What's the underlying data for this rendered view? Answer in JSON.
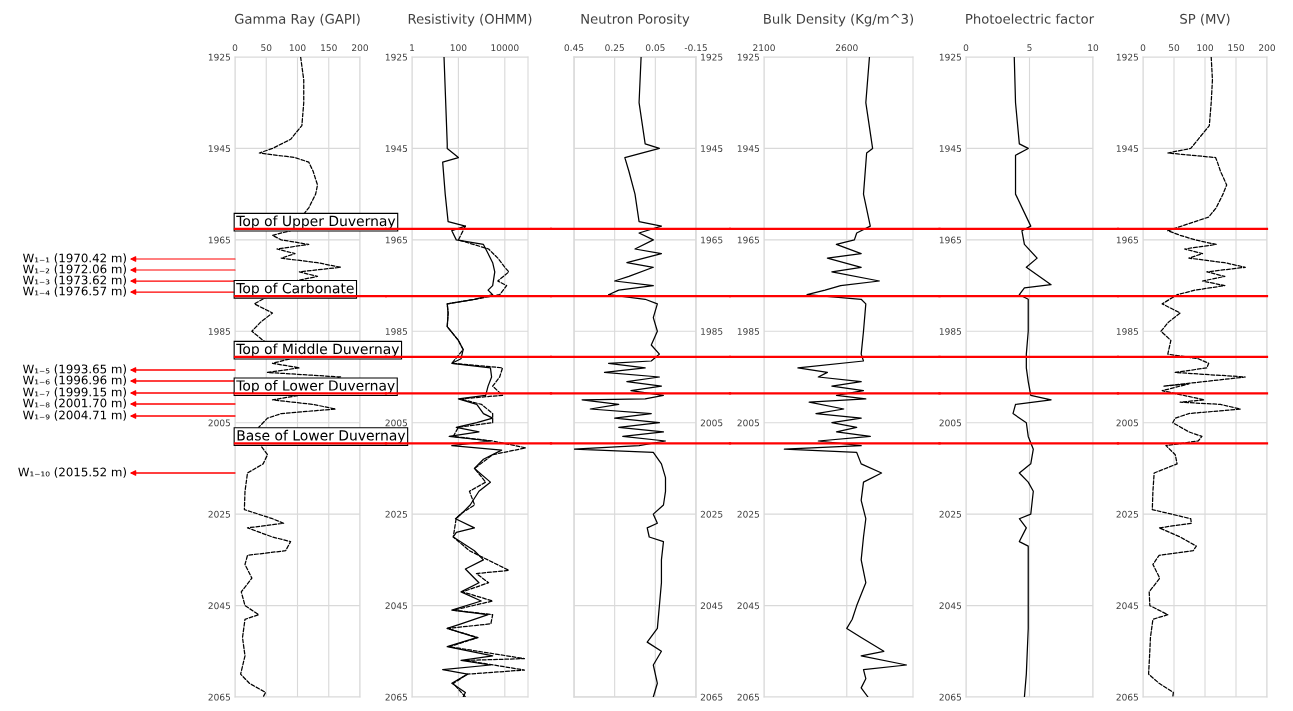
{
  "chart_data": [
    {
      "type": "line",
      "title": "Gamma Ray (GAPI)",
      "xlim": [
        0,
        200
      ],
      "xticks": [
        0,
        50,
        100,
        150,
        200
      ],
      "ylim": [
        2065,
        1925
      ],
      "yticks": [
        1925,
        1945,
        1965,
        1985,
        2005,
        2025,
        2045,
        2065
      ],
      "grid": true,
      "series": [
        {
          "color": "#000000",
          "line_style": "dashed",
          "x": [
            105,
            110,
            110,
            107,
            89,
            60,
            39,
            96,
            118,
            125,
            132,
            129,
            118,
            89,
            60,
            74,
            118,
            67,
            96,
            74,
            132,
            169,
            103,
            132,
            96,
            31,
            60,
            41,
            27,
            45,
            89,
            60,
            103,
            52,
            169,
            103,
            60,
            125,
            161,
            74,
            52,
            38,
            41,
            52,
            45,
            20,
            16,
            15,
            60,
            78,
            20,
            60,
            89,
            81,
            20,
            16,
            27,
            10,
            16,
            38,
            16,
            12,
            16,
            9,
            23,
            49,
            45
          ],
          "values": [
            1925,
            1930,
            1935,
            1940,
            1943,
            1945,
            1946,
            1947,
            1948,
            1950,
            1953,
            1955,
            1958,
            1963,
            1964,
            1965,
            1966,
            1967,
            1968,
            1969,
            1970,
            1971,
            1972,
            1973,
            1974,
            1979,
            1981,
            1983,
            1985,
            1987,
            1991,
            1992,
            1993,
            1994,
            1995,
            1999,
            2000,
            2001,
            2002,
            2003,
            2004,
            2006,
            2010,
            2012,
            2014,
            2016,
            2020,
            2024,
            2026,
            2027,
            2028,
            2030,
            2031,
            2033,
            2034,
            2036,
            2039,
            2042,
            2045,
            2047,
            2048,
            2052,
            2056,
            2060,
            2062,
            2064,
            2065
          ]
        }
      ],
      "ref_lines": [
        {
          "axis": "y",
          "value": 1962.6,
          "label": "Top of Upper Duvernay",
          "color": "#ff0000"
        },
        {
          "axis": "y",
          "value": 1977.3,
          "label": "Top of Carbonate",
          "color": "#ff0000"
        },
        {
          "axis": "y",
          "value": 1990.6,
          "label": "Top of Middle Duvernay",
          "color": "#ff0000"
        },
        {
          "axis": "y",
          "value": 1998.6,
          "label": "Top of Lower Duvernay",
          "color": "#ff0000"
        },
        {
          "axis": "y",
          "value": 2009.5,
          "label": "Base of Lower Duvernay",
          "color": "#ff0000"
        }
      ],
      "annotations": [
        "W₁₋₁ (1970.42 m)",
        "W₁₋₂ (1972.06 m)",
        "W₁₋₃ (1973.62 m)",
        "W₁₋₄ (1976.57 m)",
        "W₁₋₅ (1993.65 m)",
        "W₁₋₆ (1996.96 m)",
        "W₁₋₇ (1999.15 m)",
        "W₁₋₈ (2001.70 m)",
        "W₁₋₉ (2004.71 m)",
        "W₁₋₁₀ (2015.52 m)"
      ]
    },
    {
      "type": "line",
      "title": "Resistivity (OHMM)",
      "log": "x",
      "xlim": [
        1,
        100000
      ],
      "xticks": [
        1,
        100,
        10000
      ],
      "ylim": [
        2065,
        1925
      ],
      "yticks": [
        1925,
        1945,
        1965,
        1985,
        2005,
        2025,
        2045,
        2065
      ],
      "grid": true,
      "series": [
        {
          "color": "#000000",
          "line_style": "solid",
          "x": [
            24,
            33,
            33,
            100,
            21,
            27,
            36,
            200,
            52,
            81,
            1200,
            1900,
            3000,
            3700,
            3000,
            1900,
            3000,
            490,
            33,
            36,
            33,
            100,
            160,
            130,
            52,
            2400,
            2700,
            1900,
            1500,
            100,
            620,
            1200,
            3000,
            620,
            81,
            770,
            40,
            2400,
            52,
            7300,
            1200,
            490,
            2400,
            770,
            320,
            130,
            75,
            490,
            81,
            60,
            490,
            1200,
            200,
            770,
            130,
            960,
            52,
            1900,
            130,
            33,
            620,
            33,
            3000,
            130,
            2400,
            21,
            250,
            52,
            200,
            160
          ],
          "values": [
            1925,
            1944,
            1945,
            1947,
            1948,
            1955,
            1961,
            1962,
            1963,
            1965,
            1966,
            1968,
            1970,
            1972,
            1975,
            1976,
            1977,
            1978,
            1979,
            1981,
            1984,
            1987,
            1989,
            1991,
            1992,
            1993,
            1995,
            1997,
            1999,
            1999.8,
            2001,
            2003,
            2004,
            2005,
            2006,
            2007,
            2008,
            2009,
            2010,
            2011,
            2013,
            2015,
            2018,
            2020,
            2023,
            2025,
            2026,
            2028,
            2029,
            2030,
            2033,
            2035,
            2037,
            2040,
            2042,
            2044,
            2046,
            2047,
            2049,
            2050,
            2052,
            2054,
            2056,
            2057,
            2058,
            2059,
            2060,
            2062,
            2064,
            2065
          ]
        },
        {
          "color": "#000000",
          "line_style": "dashed",
          "x": [
            200,
            100,
            2000,
            5000,
            10000,
            15000,
            5000,
            12000,
            6000,
            500,
            33,
            36,
            33,
            100,
            160,
            52,
            8000,
            6000,
            3000,
            8000,
            120,
            1000,
            3000,
            3000,
            100,
            60,
            3000,
            80000,
            3000,
            500,
            1500,
            300,
            500,
            120,
            80,
            60,
            300,
            15000,
            600,
            2000,
            150,
            3000,
            60,
            3000,
            2500,
            33,
            700,
            40,
            70000,
            200,
            70000,
            250,
            60,
            200
          ],
          "values": [
            1962,
            1965,
            1967,
            1969,
            1971,
            1972,
            1974,
            1975,
            1977,
            1978,
            1979,
            1981,
            1984,
            1987,
            1989,
            1992,
            1993,
            1995,
            1997,
            1999,
            1999.8,
            2001,
            2003,
            2005,
            2006,
            2008,
            2009,
            2010.5,
            2012,
            2015,
            2018,
            2020,
            2023,
            2025,
            2026,
            2030,
            2033,
            2037.3,
            2038,
            2040,
            2042,
            2044,
            2046,
            2047,
            2049,
            2050,
            2052,
            2054,
            2056.6,
            2057,
            2059.1,
            2060,
            2062,
            2065
          ]
        }
      ],
      "ref_lines": [
        {
          "axis": "y",
          "value": 1962.6,
          "color": "#ff0000"
        },
        {
          "axis": "y",
          "value": 1977.3,
          "color": "#ff0000"
        },
        {
          "axis": "y",
          "value": 1990.6,
          "color": "#ff0000"
        },
        {
          "axis": "y",
          "value": 1998.6,
          "color": "#ff0000"
        },
        {
          "axis": "y",
          "value": 2009.5,
          "color": "#ff0000"
        }
      ]
    },
    {
      "type": "line",
      "title": "Neutron Porosity",
      "xlim": [
        0.45,
        -0.15
      ],
      "xticks": [
        0.45,
        0.25,
        0.05,
        {
          "value": -0.15,
          "label": "-0.15"
        }
      ],
      "y2lim": [
        2065,
        1925
      ],
      "y2ticks": [
        1925,
        1945,
        1965,
        1985,
        2005,
        2025,
        2045,
        2065
      ],
      "grid": true,
      "series": [
        {
          "color": "#000000",
          "line_style": "solid",
          "axis": "y2",
          "x": [
            0.12,
            0.13,
            0.1,
            0.03,
            0.2,
            0.18,
            0.15,
            0.13,
            0.02,
            0.13,
            0.06,
            0.15,
            0.02,
            0.19,
            0.06,
            0.18,
            0.25,
            0.06,
            0.23,
            0.28,
            0.1,
            0.04,
            0.06,
            0.04,
            0.07,
            0.03,
            0.07,
            0.28,
            0.1,
            0.3,
            0.03,
            0.19,
            0.02,
            0.17,
            0.01,
            0.1,
            0.41,
            0.23,
            0.37,
            0.07,
            0.25,
            0.03,
            0.23,
            0.01,
            0.21,
            0.0,
            0.13,
            0.45,
            0.06,
            0.02,
            0.0,
            0.0,
            0.01,
            0.06,
            0.04,
            0.09,
            0.08,
            0.01,
            0.02,
            0.02,
            0.03,
            0.04,
            0.09,
            0.02,
            0.06,
            0.04,
            0.06
          ],
          "values": [
            1925,
            1935,
            1944,
            1945,
            1947,
            1950,
            1955,
            1961,
            1962,
            1963.5,
            1965,
            1967,
            1968,
            1970,
            1971,
            1973,
            1974,
            1975,
            1976,
            1977,
            1978,
            1979,
            1982,
            1985,
            1988,
            1990,
            1991.5,
            1992,
            1993,
            1994,
            1995,
            1996,
            1997,
            1998,
            1999,
            1999.8,
            2000,
            2001,
            2002,
            2003,
            2004,
            2005,
            2006,
            2007,
            2008,
            2009,
            2010,
            2010.8,
            2011.5,
            2014,
            2017,
            2020,
            2023,
            2025,
            2027,
            2028,
            2030,
            2031,
            2035,
            2040,
            2045,
            2050,
            2053,
            2055,
            2058,
            2062,
            2065
          ]
        }
      ],
      "ref_lines": [
        {
          "axis": "y2",
          "value": 1962.6,
          "color": "#ff0000"
        },
        {
          "axis": "y2",
          "value": 1977.3,
          "color": "#ff0000"
        },
        {
          "axis": "y2",
          "value": 1990.6,
          "color": "#ff0000"
        },
        {
          "axis": "y2",
          "value": 1998.6,
          "color": "#ff0000"
        },
        {
          "axis": "y2",
          "value": 2009.5,
          "color": "#ff0000"
        }
      ]
    },
    {
      "type": "line",
      "title": "Bulk Density (Kg/m^3)",
      "xlim": [
        2100,
        3000
      ],
      "xticks": [
        2100,
        2600
      ],
      "ylim": [
        2065,
        1925
      ],
      "yticks": [
        1925,
        1945,
        1965,
        1985,
        2005,
        2025,
        2045,
        2065
      ],
      "grid": true,
      "series": [
        {
          "color": "#000000",
          "line_style": "solid",
          "x": [
            2737,
            2715,
            2756,
            2720,
            2701,
            2742,
            2660,
            2646,
            2537,
            2687,
            2483,
            2687,
            2510,
            2797,
            2563,
            2469,
            2360,
            2687,
            2715,
            2701,
            2687,
            2701,
            2305,
            2483,
            2428,
            2687,
            2510,
            2701,
            2538,
            2715,
            2373,
            2582,
            2414,
            2687,
            2510,
            2660,
            2538,
            2742,
            2428,
            2687,
            2223,
            2660,
            2687,
            2810,
            2701,
            2687,
            2715,
            2701,
            2687,
            2715,
            2660,
            2633,
            2600,
            2687,
            2824,
            2687,
            2961,
            2701,
            2715,
            2687,
            2728
          ],
          "values": [
            1925,
            1935,
            1945,
            1946,
            1955,
            1962,
            1963.5,
            1965,
            1966,
            1968,
            1969,
            1971,
            1972,
            1974,
            1975,
            1976,
            1977,
            1978,
            1979,
            1985,
            1990,
            1991.5,
            1993,
            1994,
            1995,
            1996,
            1997,
            1998,
            1999,
            1999.8,
            2000.5,
            2002,
            2003,
            2004,
            2005,
            2006,
            2007,
            2008,
            2009,
            2010,
            2010.8,
            2011.5,
            2014,
            2016,
            2018,
            2022,
            2026,
            2030,
            2035,
            2040,
            2045,
            2048,
            2050,
            2052,
            2055,
            2056,
            2058,
            2059,
            2061,
            2063,
            2065
          ]
        }
      ],
      "ref_lines": [
        {
          "axis": "y",
          "value": 1962.6,
          "color": "#ff0000"
        },
        {
          "axis": "y",
          "value": 1977.3,
          "color": "#ff0000"
        },
        {
          "axis": "y",
          "value": 1990.6,
          "color": "#ff0000"
        },
        {
          "axis": "y",
          "value": 1998.6,
          "color": "#ff0000"
        },
        {
          "axis": "y",
          "value": 2009.5,
          "color": "#ff0000"
        }
      ]
    },
    {
      "type": "line",
      "title": "Photoelectric factor",
      "xlim": [
        0,
        10
      ],
      "xticks": [
        0,
        5,
        10
      ],
      "ylim": [
        2065,
        1925
      ],
      "yticks": [
        1925,
        1945,
        1965,
        1985,
        2005,
        2025,
        2045,
        2065
      ],
      "grid": true,
      "series": [
        {
          "color": "#000000",
          "line_style": "solid",
          "x": [
            3.8,
            3.9,
            4.2,
            4.9,
            3.9,
            3.9,
            5.1,
            4.4,
            4.6,
            5.6,
            4.75,
            6.7,
            4.6,
            4.2,
            4.9,
            4.9,
            4.75,
            4.75,
            4.9,
            5.1,
            6.7,
            3.9,
            3.7,
            4.75,
            4.9,
            5.3,
            5.1,
            4.2,
            4.9,
            5.3,
            5.1,
            4.2,
            4.75,
            4.2,
            4.9,
            4.9,
            4.9,
            4.75,
            4.6
          ],
          "values": [
            1925,
            1935,
            1944,
            1945,
            1946.5,
            1955,
            1962,
            1963,
            1966,
            1969,
            1971,
            1974.8,
            1975.5,
            1977,
            1978,
            1985,
            1990,
            1993,
            1996,
            1999,
            2000,
            2001,
            2003,
            2005,
            2008,
            2010.8,
            2014,
            2016,
            2018,
            2020,
            2025,
            2026,
            2028,
            2031,
            2032,
            2040,
            2050,
            2060,
            2065
          ]
        }
      ],
      "ref_lines": [
        {
          "axis": "y",
          "value": 1962.6,
          "color": "#ff0000"
        },
        {
          "axis": "y",
          "value": 1977.3,
          "color": "#ff0000"
        },
        {
          "axis": "y",
          "value": 1990.6,
          "color": "#ff0000"
        },
        {
          "axis": "y",
          "value": 1998.6,
          "color": "#ff0000"
        },
        {
          "axis": "y",
          "value": 2009.5,
          "color": "#ff0000"
        }
      ]
    },
    {
      "type": "line",
      "title": "SP (MV)",
      "xlim": [
        0,
        200
      ],
      "xticks": [
        0,
        50,
        100,
        150,
        200
      ],
      "ylim": [
        2065,
        1925
      ],
      "yticks": [
        1925,
        1945,
        1965,
        1985,
        2005,
        2025,
        2045,
        2065
      ],
      "grid": true,
      "series": [
        {
          "color": "#000000",
          "line_style": "dashed",
          "x": [
            110,
            112,
            110,
            107,
            89,
            77,
            40,
            117,
            120,
            125,
            135,
            129,
            118,
            106,
            40,
            60,
            84,
            118,
            67,
            96,
            74,
            132,
            165,
            103,
            132,
            96,
            132,
            84,
            55,
            31,
            60,
            41,
            29,
            45,
            40,
            89,
            106,
            103,
            52,
            165,
            33,
            74,
            31,
            99,
            60,
            125,
            157,
            74,
            52,
            48,
            74,
            95,
            89,
            37,
            52,
            55,
            18,
            16,
            15,
            77,
            78,
            26,
            60,
            86,
            81,
            26,
            16,
            27,
            10,
            11,
            40,
            16,
            12,
            11,
            9,
            26,
            49,
            48
          ],
          "values": [
            1925,
            1930,
            1935,
            1940,
            1943,
            1945,
            1946,
            1947,
            1948,
            1950,
            1953,
            1955,
            1958,
            1960,
            1963,
            1964,
            1965,
            1966,
            1967,
            1968,
            1969,
            1970,
            1971,
            1972,
            1973,
            1974,
            1975,
            1976,
            1977,
            1979,
            1981,
            1983,
            1985,
            1987,
            1990,
            1991,
            1992,
            1993,
            1994,
            1995,
            1997,
            1996.5,
            1998,
            2000,
            2000.5,
            2001,
            2002,
            2003,
            2004,
            2005,
            2007,
            2008,
            2009,
            2010,
            2012,
            2014,
            2016,
            2020,
            2024,
            2026,
            2027,
            2028,
            2030,
            2032,
            2033,
            2034,
            2036,
            2039,
            2042,
            2045,
            2047,
            2048,
            2052,
            2055,
            2060,
            2062,
            2064,
            2065
          ]
        }
      ],
      "ref_lines": [
        {
          "axis": "y",
          "value": 1962.6,
          "color": "#ff0000"
        },
        {
          "axis": "y",
          "value": 1977.3,
          "color": "#ff0000"
        },
        {
          "axis": "y",
          "value": 1990.6,
          "color": "#ff0000"
        },
        {
          "axis": "y",
          "value": 1998.6,
          "color": "#ff0000"
        },
        {
          "axis": "y",
          "value": 2009.5,
          "color": "#ff0000"
        }
      ]
    }
  ]
}
